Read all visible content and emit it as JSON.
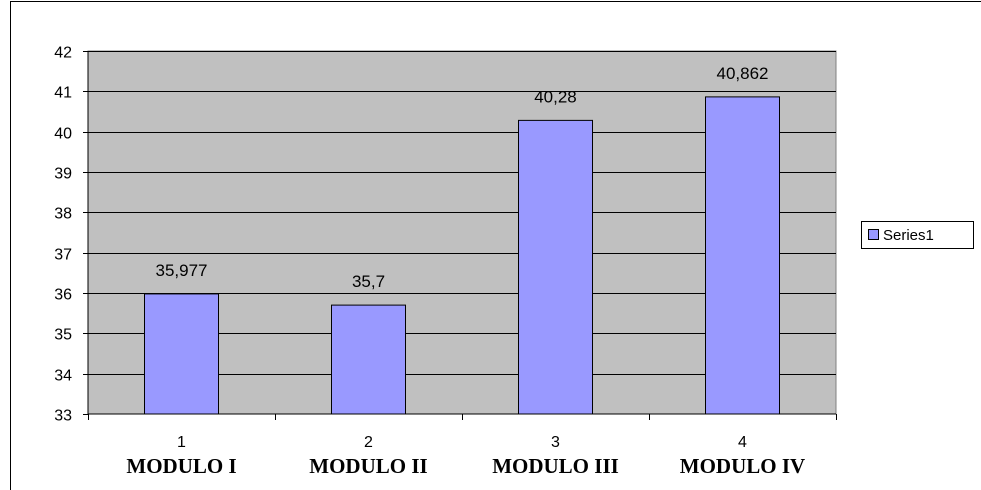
{
  "chart_data": {
    "type": "bar",
    "categories": [
      "1",
      "2",
      "3",
      "4"
    ],
    "category_names": [
      "MODULO I",
      "MODULO II",
      "MODULO III",
      "MODULO IV"
    ],
    "series": [
      {
        "name": "Series1",
        "values": [
          35.977,
          35.7,
          40.28,
          40.862
        ]
      }
    ],
    "data_labels": [
      "35,977",
      "35,7",
      "40,28",
      "40,862"
    ],
    "ylim": [
      33,
      42
    ],
    "yticks": [
      33,
      34,
      35,
      36,
      37,
      38,
      39,
      40,
      41,
      42
    ],
    "grid": true,
    "legend": "right",
    "colors": {
      "plot_bg": "#c0c0c0",
      "bar_fill": "#9999ff",
      "bar_stroke": "#000000",
      "gridline": "#000000"
    }
  }
}
